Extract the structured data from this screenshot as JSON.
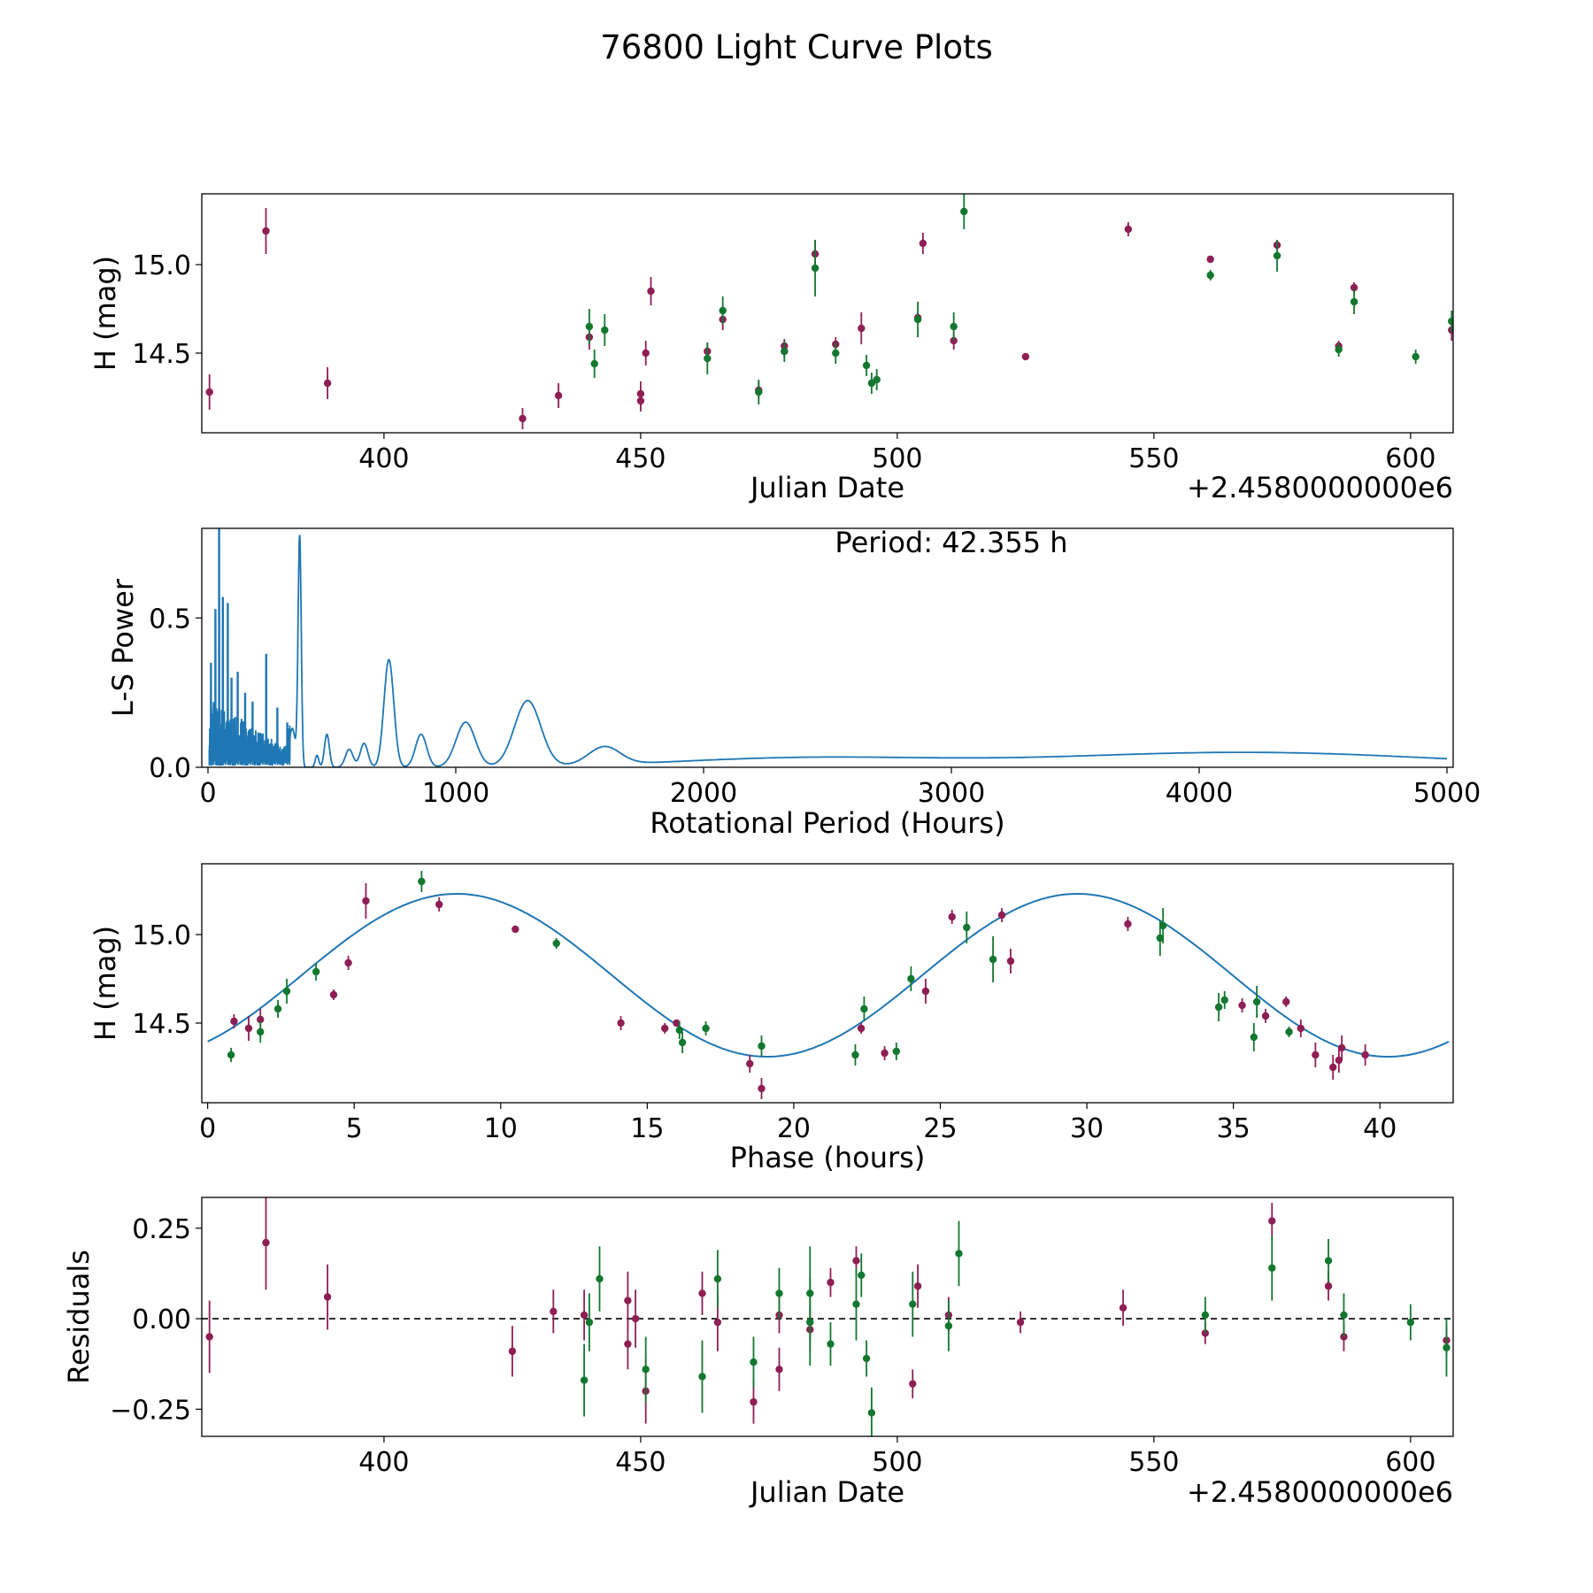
{
  "title": "76800 Light Curve Plots",
  "colors": {
    "red": "#8e1f55",
    "green": "#13772f",
    "line": "#1f77b4"
  },
  "chart_data": [
    {
      "id": "lightcurve",
      "type": "scatter",
      "xlabel": "Julian Date",
      "ylabel": "H (mag)",
      "offset_label": "+2.4580000000e6",
      "xlim": [
        364.5,
        608.3
      ],
      "ylim": [
        14.05,
        15.4
      ],
      "xticks": [
        400,
        450,
        500,
        550,
        600
      ],
      "yticks": [
        14.5,
        15.0
      ],
      "ytick_labels": [
        "14.5",
        "15.0"
      ],
      "red": [
        [
          366,
          14.28,
          0.1
        ],
        [
          377,
          15.19,
          0.13
        ],
        [
          389,
          14.33,
          0.09
        ],
        [
          427,
          14.13,
          0.06
        ],
        [
          434,
          14.26,
          0.07
        ],
        [
          440,
          14.59,
          0.07
        ],
        [
          450,
          14.23,
          0.06
        ],
        [
          450,
          14.27,
          0.07
        ],
        [
          451,
          14.5,
          0.07
        ],
        [
          452,
          14.85,
          0.08
        ],
        [
          463,
          14.51,
          0.05
        ],
        [
          466,
          14.69,
          0.06
        ],
        [
          473,
          14.29,
          0.05
        ],
        [
          478,
          14.54,
          0.04
        ],
        [
          478,
          14.51,
          0.04
        ],
        [
          484,
          15.06,
          0.08
        ],
        [
          488,
          14.55,
          0.04
        ],
        [
          493,
          14.64,
          0.09
        ],
        [
          504,
          14.7,
          0.03
        ],
        [
          505,
          15.12,
          0.06
        ],
        [
          511,
          14.57,
          0.05
        ],
        [
          525,
          14.48,
          0.02
        ],
        [
          545,
          15.2,
          0.04
        ],
        [
          561,
          15.03,
          0.02
        ],
        [
          574,
          15.11,
          0.03
        ],
        [
          586,
          14.54,
          0.03
        ],
        [
          589,
          14.87,
          0.03
        ],
        [
          608,
          14.63,
          0.06
        ]
      ],
      "green": [
        [
          440,
          14.65,
          0.1
        ],
        [
          441,
          14.44,
          0.08
        ],
        [
          443,
          14.63,
          0.09
        ],
        [
          463,
          14.47,
          0.09
        ],
        [
          466,
          14.74,
          0.08
        ],
        [
          473,
          14.28,
          0.07
        ],
        [
          478,
          14.51,
          0.06
        ],
        [
          484,
          14.98,
          0.16
        ],
        [
          488,
          14.5,
          0.06
        ],
        [
          494,
          14.43,
          0.06
        ],
        [
          495,
          14.33,
          0.06
        ],
        [
          496,
          14.35,
          0.06
        ],
        [
          504,
          14.69,
          0.1
        ],
        [
          511,
          14.65,
          0.08
        ],
        [
          513,
          15.3,
          0.1
        ],
        [
          561,
          14.94,
          0.03
        ],
        [
          574,
          15.05,
          0.09
        ],
        [
          586,
          14.52,
          0.04
        ],
        [
          589,
          14.79,
          0.07
        ],
        [
          601,
          14.48,
          0.04
        ],
        [
          608,
          14.68,
          0.06
        ]
      ]
    },
    {
      "id": "periodogram",
      "type": "line",
      "xlabel": "Rotational Period (Hours)",
      "ylabel": "L-S Power",
      "annotation": "Period: 42.355 h",
      "xlim": [
        -25,
        5025
      ],
      "ylim": [
        0,
        0.8
      ],
      "xticks": [
        0,
        1000,
        2000,
        3000,
        4000,
        5000
      ],
      "yticks": [
        0.0,
        0.5
      ],
      "ytick_labels": [
        "0.0",
        "0.5"
      ],
      "peaks": [
        [
          340,
          0.13,
          18
        ],
        [
          370,
          0.77,
          9
        ],
        [
          440,
          0.04,
          10
        ],
        [
          480,
          0.11,
          14
        ],
        [
          570,
          0.06,
          22
        ],
        [
          630,
          0.08,
          22
        ],
        [
          730,
          0.36,
          28
        ],
        [
          860,
          0.11,
          32
        ],
        [
          1040,
          0.15,
          55
        ],
        [
          1290,
          0.22,
          75
        ],
        [
          1600,
          0.06,
          90
        ]
      ],
      "bumps": [
        [
          2400,
          0.03,
          750
        ],
        [
          4180,
          0.05,
          1100
        ]
      ],
      "dense_range": [
        5,
        330
      ],
      "dense_spikes": [
        [
          12,
          0.35
        ],
        [
          30,
          0.53
        ],
        [
          45,
          0.8
        ],
        [
          60,
          0.57
        ],
        [
          80,
          0.55
        ],
        [
          120,
          0.32
        ],
        [
          235,
          0.38
        ],
        [
          180,
          0.22
        ],
        [
          150,
          0.25
        ],
        [
          95,
          0.3
        ],
        [
          280,
          0.2
        ],
        [
          320,
          0.15
        ]
      ]
    },
    {
      "id": "phased",
      "type": "scatter",
      "xlabel": "Phase (hours)",
      "ylabel": "H (mag)",
      "xlim": [
        -0.2,
        42.5
      ],
      "ylim": [
        14.05,
        15.4
      ],
      "xticks": [
        0,
        5,
        10,
        15,
        20,
        25,
        30,
        35,
        40
      ],
      "yticks": [
        14.5,
        15.0
      ],
      "ytick_labels": [
        "14.5",
        "15.0"
      ],
      "fit": {
        "mean": 14.77,
        "amp": 0.46,
        "period": 21.18,
        "peak": 8.5,
        "x_range": [
          0,
          42.35
        ]
      },
      "red": [
        [
          0.9,
          14.51,
          0.04
        ],
        [
          1.4,
          14.47,
          0.07
        ],
        [
          1.8,
          14.52,
          0.06
        ],
        [
          4.3,
          14.66,
          0.03
        ],
        [
          4.8,
          14.84,
          0.04
        ],
        [
          5.4,
          15.19,
          0.1
        ],
        [
          7.9,
          15.17,
          0.04
        ],
        [
          10.5,
          15.03,
          0.02
        ],
        [
          14.1,
          14.5,
          0.04
        ],
        [
          15.6,
          14.47,
          0.03
        ],
        [
          16.0,
          14.5,
          0.02
        ],
        [
          18.5,
          14.27,
          0.05
        ],
        [
          18.9,
          14.13,
          0.06
        ],
        [
          22.3,
          14.47,
          0.03
        ],
        [
          23.1,
          14.33,
          0.04
        ],
        [
          24.5,
          14.68,
          0.07
        ],
        [
          25.4,
          15.1,
          0.04
        ],
        [
          27.1,
          15.11,
          0.04
        ],
        [
          27.4,
          14.85,
          0.07
        ],
        [
          31.4,
          15.06,
          0.04
        ],
        [
          35.3,
          14.6,
          0.04
        ],
        [
          36.1,
          14.54,
          0.04
        ],
        [
          36.8,
          14.62,
          0.03
        ],
        [
          37.3,
          14.47,
          0.05
        ],
        [
          37.8,
          14.32,
          0.07
        ],
        [
          38.4,
          14.25,
          0.07
        ],
        [
          38.6,
          14.29,
          0.07
        ],
        [
          38.7,
          14.36,
          0.07
        ],
        [
          39.5,
          14.32,
          0.06
        ]
      ],
      "green": [
        [
          0.8,
          14.32,
          0.04
        ],
        [
          1.8,
          14.45,
          0.06
        ],
        [
          2.4,
          14.58,
          0.05
        ],
        [
          2.7,
          14.68,
          0.07
        ],
        [
          3.7,
          14.79,
          0.05
        ],
        [
          7.3,
          15.3,
          0.06
        ],
        [
          11.9,
          14.95,
          0.03
        ],
        [
          16.1,
          14.46,
          0.05
        ],
        [
          16.2,
          14.39,
          0.06
        ],
        [
          17.0,
          14.47,
          0.04
        ],
        [
          18.9,
          14.37,
          0.06
        ],
        [
          22.1,
          14.32,
          0.06
        ],
        [
          22.4,
          14.58,
          0.07
        ],
        [
          23.5,
          14.34,
          0.05
        ],
        [
          24.0,
          14.75,
          0.07
        ],
        [
          25.9,
          15.04,
          0.09
        ],
        [
          26.8,
          14.86,
          0.13
        ],
        [
          32.5,
          14.98,
          0.1
        ],
        [
          32.6,
          15.05,
          0.1
        ],
        [
          34.5,
          14.59,
          0.08
        ],
        [
          34.7,
          14.63,
          0.05
        ],
        [
          35.7,
          14.42,
          0.08
        ],
        [
          35.8,
          14.62,
          0.09
        ],
        [
          36.9,
          14.45,
          0.03
        ]
      ]
    },
    {
      "id": "residuals",
      "type": "scatter",
      "xlabel": "Julian Date",
      "ylabel": "Residuals",
      "offset_label": "+2.4580000000e6",
      "xlim": [
        364.5,
        608.3
      ],
      "ylim": [
        -0.325,
        0.335
      ],
      "xticks": [
        400,
        450,
        500,
        550,
        600
      ],
      "yticks": [
        0.25,
        0.0,
        -0.25
      ],
      "ytick_labels": [
        "0.25",
        "0.00",
        "−0.25"
      ],
      "reference_line": 0,
      "red": [
        [
          366,
          -0.05,
          0.1
        ],
        [
          377,
          0.21,
          0.13
        ],
        [
          389,
          0.06,
          0.09
        ],
        [
          425,
          -0.09,
          0.07
        ],
        [
          433,
          0.02,
          0.06
        ],
        [
          439,
          0.01,
          0.07
        ],
        [
          447.5,
          0.05,
          0.08
        ],
        [
          447.5,
          -0.07,
          0.07
        ],
        [
          449,
          0.0,
          0.08
        ],
        [
          451,
          -0.2,
          0.09
        ],
        [
          462,
          0.07,
          0.06
        ],
        [
          465,
          -0.01,
          0.08
        ],
        [
          472,
          -0.23,
          0.06
        ],
        [
          477,
          -0.14,
          0.06
        ],
        [
          477,
          0.01,
          0.05
        ],
        [
          483,
          -0.03,
          0.06
        ],
        [
          487,
          0.1,
          0.04
        ],
        [
          492,
          0.16,
          0.04
        ],
        [
          503,
          -0.18,
          0.04
        ],
        [
          504,
          0.09,
          0.06
        ],
        [
          510,
          0.01,
          0.05
        ],
        [
          524,
          -0.01,
          0.03
        ],
        [
          544,
          0.03,
          0.05
        ],
        [
          560,
          -0.04,
          0.03
        ],
        [
          573,
          0.27,
          0.05
        ],
        [
          584,
          0.09,
          0.04
        ],
        [
          587,
          -0.05,
          0.04
        ],
        [
          607,
          -0.06,
          0.04
        ]
      ],
      "green": [
        [
          439,
          -0.17,
          0.1
        ],
        [
          440,
          -0.01,
          0.08
        ],
        [
          442,
          0.11,
          0.09
        ],
        [
          451,
          -0.14,
          0.09
        ],
        [
          462,
          -0.16,
          0.1
        ],
        [
          465,
          0.11,
          0.08
        ],
        [
          472,
          -0.12,
          0.07
        ],
        [
          477,
          0.07,
          0.07
        ],
        [
          483,
          0.07,
          0.13
        ],
        [
          483,
          -0.01,
          0.12
        ],
        [
          487,
          -0.07,
          0.06
        ],
        [
          492,
          0.04,
          0.1
        ],
        [
          493,
          0.12,
          0.06
        ],
        [
          494,
          -0.11,
          0.05
        ],
        [
          495,
          -0.26,
          0.07
        ],
        [
          503,
          0.04,
          0.09
        ],
        [
          510,
          -0.02,
          0.07
        ],
        [
          512,
          0.18,
          0.09
        ],
        [
          560,
          0.01,
          0.05
        ],
        [
          573,
          0.14,
          0.09
        ],
        [
          584,
          0.16,
          0.06
        ],
        [
          587,
          0.01,
          0.06
        ],
        [
          600,
          -0.01,
          0.05
        ],
        [
          607,
          -0.08,
          0.08
        ]
      ]
    }
  ]
}
